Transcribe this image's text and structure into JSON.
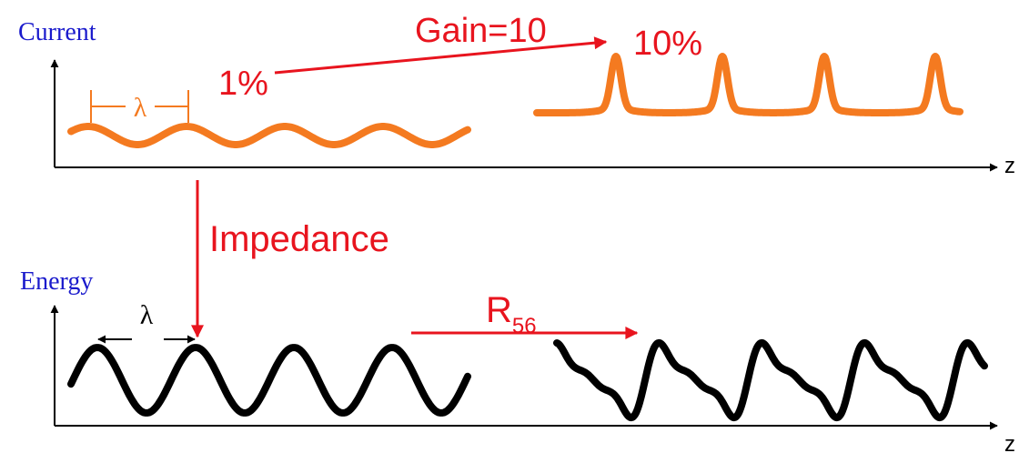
{
  "colors": {
    "axis": "#000000",
    "axis_label": "#1a1acc",
    "annotation": "#e8141e",
    "current_wave": "#f47a20",
    "energy_wave": "#000000",
    "lambda_marker_top": "#f47a20",
    "lambda_marker_bottom": "#000000"
  },
  "labels": {
    "current_axis": "Current",
    "energy_axis": "Energy",
    "z_top": "z",
    "z_bottom": "z",
    "lambda_top": "λ",
    "lambda_bottom": "λ",
    "one_percent": "1%",
    "gain": "Gain=10",
    "ten_percent": "10%",
    "impedance": "Impedance",
    "r56_main": "R",
    "r56_sub": "56"
  }
}
